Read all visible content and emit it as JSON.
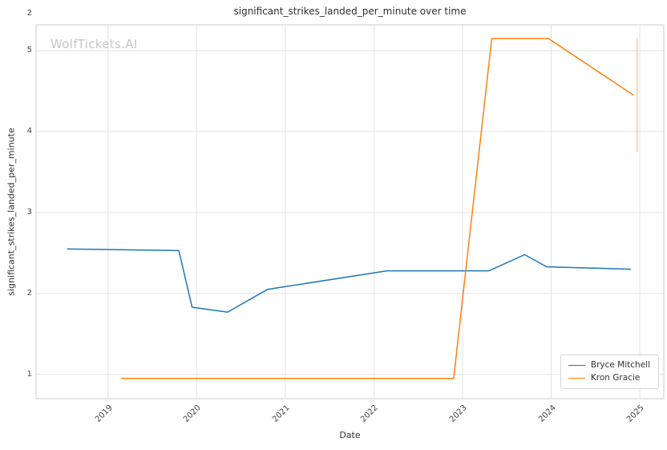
{
  "watermark": "WolfTickets.AI",
  "y_axis_extra_label": "2",
  "colors": {
    "bryce_mitchell": "#1f77b4",
    "kron_gracie": "#ff7f0e",
    "grid": "#e3e3e3",
    "frame": "#cccccc",
    "text": "#2f2f2f",
    "tick_text": "#444444",
    "watermark": "#c6c6c6",
    "error_bar": "#ffbf86"
  },
  "chart_data": {
    "type": "line",
    "title": "significant_strikes_landed_per_minute over time",
    "xlabel": "Date",
    "ylabel": "significant_strikes_landed_per_minute",
    "xlim": [
      2018.19,
      2025.27
    ],
    "ylim": [
      0.7,
      5.32
    ],
    "x_ticks": [
      2019,
      2020,
      2021,
      2022,
      2023,
      2024,
      2025
    ],
    "y_ticks": [
      1,
      2,
      3,
      4,
      5
    ],
    "grid": true,
    "legend_position": "lower right",
    "series": [
      {
        "name": "Bryce Mitchell",
        "color": "#1f77b4",
        "points": [
          [
            2018.54,
            2.55
          ],
          [
            2019.8,
            2.53
          ],
          [
            2019.95,
            1.83
          ],
          [
            2020.35,
            1.77
          ],
          [
            2020.8,
            2.05
          ],
          [
            2022.15,
            2.28
          ],
          [
            2023.3,
            2.28
          ],
          [
            2023.7,
            2.48
          ],
          [
            2023.95,
            2.33
          ],
          [
            2024.9,
            2.3
          ]
        ]
      },
      {
        "name": "Kron Gracie",
        "color": "#ff7f0e",
        "points": [
          [
            2019.15,
            0.95
          ],
          [
            2022.9,
            0.95
          ],
          [
            2023.33,
            5.15
          ],
          [
            2023.97,
            5.15
          ],
          [
            2024.93,
            4.45
          ]
        ]
      }
    ],
    "error_bar": {
      "x": 2024.97,
      "y_low": 3.75,
      "y_high": 5.16,
      "color": "#ffbf86"
    }
  }
}
